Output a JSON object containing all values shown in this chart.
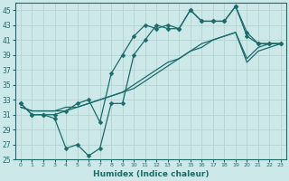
{
  "xlabel": "Humidex (Indice chaleur)",
  "xlim": [
    -0.5,
    23.5
  ],
  "ylim": [
    25,
    46
  ],
  "yticks": [
    25,
    27,
    29,
    31,
    33,
    35,
    37,
    39,
    41,
    43,
    45
  ],
  "xticks": [
    0,
    1,
    2,
    3,
    4,
    5,
    6,
    7,
    8,
    9,
    10,
    11,
    12,
    13,
    14,
    15,
    16,
    17,
    18,
    19,
    20,
    21,
    22,
    23
  ],
  "bg_color": "#cde8e8",
  "grid_color": "#aed0d0",
  "line_color": "#1a6b6b",
  "line_valley": [
    32.5,
    31.0,
    31.0,
    30.5,
    26.5,
    27.0,
    25.5,
    26.5,
    32.5,
    32.5,
    39.0,
    41.0,
    43.0,
    42.5,
    42.5,
    45.0,
    43.5,
    43.5,
    43.5,
    45.5,
    42.0,
    40.5,
    40.5,
    40.5
  ],
  "line_trend1": [
    32.0,
    31.5,
    31.5,
    31.5,
    32.0,
    32.0,
    32.5,
    33.0,
    33.5,
    34.0,
    35.0,
    36.0,
    37.0,
    38.0,
    38.5,
    39.5,
    40.5,
    41.0,
    41.5,
    42.0,
    38.5,
    40.0,
    40.5,
    40.5
  ],
  "line_trend2": [
    32.0,
    31.5,
    31.5,
    31.5,
    31.5,
    32.0,
    32.5,
    33.0,
    33.5,
    34.0,
    34.5,
    35.5,
    36.5,
    37.5,
    38.5,
    39.5,
    40.0,
    41.0,
    41.5,
    42.0,
    38.0,
    39.5,
    40.0,
    40.5
  ],
  "line_upper": [
    32.5,
    31.0,
    31.0,
    31.0,
    31.5,
    32.5,
    33.0,
    30.0,
    36.5,
    39.0,
    41.5,
    43.0,
    42.5,
    43.0,
    42.5,
    45.0,
    43.5,
    43.5,
    43.5,
    45.5,
    41.5,
    40.5,
    40.5,
    40.5
  ]
}
